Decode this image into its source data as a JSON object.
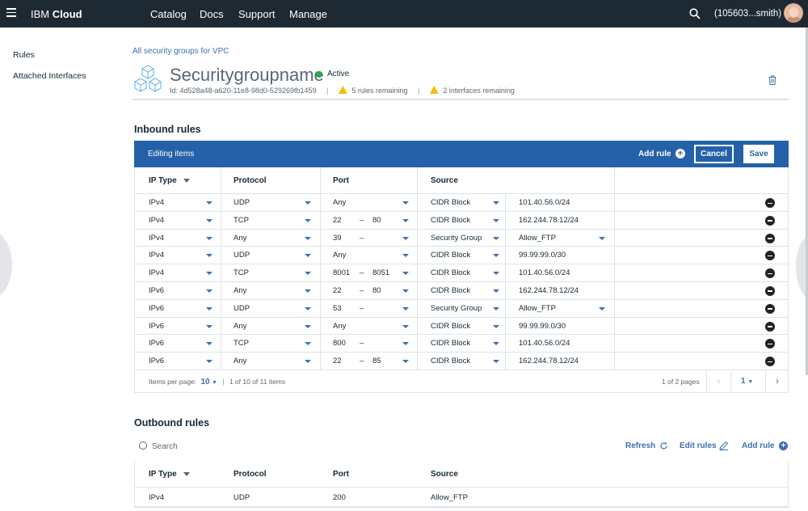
{
  "topbar": {
    "brand_ibm": "IBM",
    "brand_cloud": "Cloud",
    "nav": [
      "Catalog",
      "Docs",
      "Support",
      "Manage"
    ],
    "account": "(105603...smith)"
  },
  "leftnav": {
    "items": [
      "Rules",
      "Attached Interfaces"
    ]
  },
  "header": {
    "breadcrumb": "All security groups for VPC",
    "title": "Securitygroupname",
    "status": "Active",
    "id": "Id: 4d528a48-a620-11e8-98d0-529269fb1459",
    "rules_remaining": "5 rules remaining",
    "interfaces_remaining": "2 interfaces remaining",
    "separator": "|"
  },
  "inbound": {
    "title": "Inbound rules",
    "edit_label": "Editing items",
    "add_rule": "Add rule",
    "cancel": "Cancel",
    "save": "Save",
    "columns": [
      "IP Type",
      "Protocol",
      "Port",
      "Source"
    ],
    "rows": [
      {
        "ip": "IPv4",
        "protocol": "UDP",
        "port_from": "Any",
        "port_to": "",
        "source_type": "CIDR Block",
        "source": "101.40.56.0/24"
      },
      {
        "ip": "IPv4",
        "protocol": "TCP",
        "port_from": "22",
        "port_to": "80",
        "source_type": "CIDR Block",
        "source": "162.244.78.12/24"
      },
      {
        "ip": "IPv4",
        "protocol": "Any",
        "port_from": "39",
        "port_to": "",
        "source_type": "Security Group",
        "source": "Allow_FTP"
      },
      {
        "ip": "IPv4",
        "protocol": "UDP",
        "port_from": "Any",
        "port_to": "",
        "source_type": "CIDR Block",
        "source": "99.99.99.0/30"
      },
      {
        "ip": "IPv4",
        "protocol": "TCP",
        "port_from": "8001",
        "port_to": "8051",
        "source_type": "CIDR Block",
        "source": "101.40.56.0/24"
      },
      {
        "ip": "IPv6",
        "protocol": "Any",
        "port_from": "22",
        "port_to": "80",
        "source_type": "CIDR Block",
        "source": "162.244.78.12/24"
      },
      {
        "ip": "IPv6",
        "protocol": "UDP",
        "port_from": "53",
        "port_to": "",
        "source_type": "Security Group",
        "source": "Allow_FTP"
      },
      {
        "ip": "IPv6",
        "protocol": "Any",
        "port_from": "Any",
        "port_to": "",
        "source_type": "CIDR Block",
        "source": "99.99.99.0/30"
      },
      {
        "ip": "IPv6",
        "protocol": "TCP",
        "port_from": "800",
        "port_to": "",
        "source_type": "CIDR Block",
        "source": "101.40.56.0/24"
      },
      {
        "ip": "IPv6",
        "protocol": "Any",
        "port_from": "22",
        "port_to": "85",
        "source_type": "CIDR Block",
        "source": "162.244.78.12/24"
      }
    ],
    "footer": {
      "items_per_page_label": "Items per page:",
      "items_per_page": "10",
      "range": "1 of 10 of 11 items",
      "pages": "1 of 2 pages",
      "current_page": "1"
    }
  },
  "outbound": {
    "title": "Outbound rules",
    "search_placeholder": "Search",
    "refresh": "Refresh",
    "edit_rules": "Edit rules",
    "add_rule": "Add rule",
    "columns": [
      "IP Type",
      "Protocol",
      "Port",
      "Source"
    ],
    "rows": [
      {
        "ip": "IPv4",
        "protocol": "UDP",
        "port": "200",
        "source": "Allow_FTP"
      }
    ]
  },
  "colors": {
    "topbar": "#1d2a34",
    "edit_bar": "#2561a8",
    "link": "#3d70b2",
    "active": "#2ea84a",
    "warning": "#efc100"
  },
  "icons": [
    "menu-icon",
    "search-icon",
    "avatar",
    "cubes-icon",
    "warning-icon",
    "trash-icon",
    "add-icon",
    "sort-icon",
    "remove-icon",
    "refresh-icon",
    "edit-icon",
    "chevron-left-icon",
    "chevron-right-icon"
  ]
}
